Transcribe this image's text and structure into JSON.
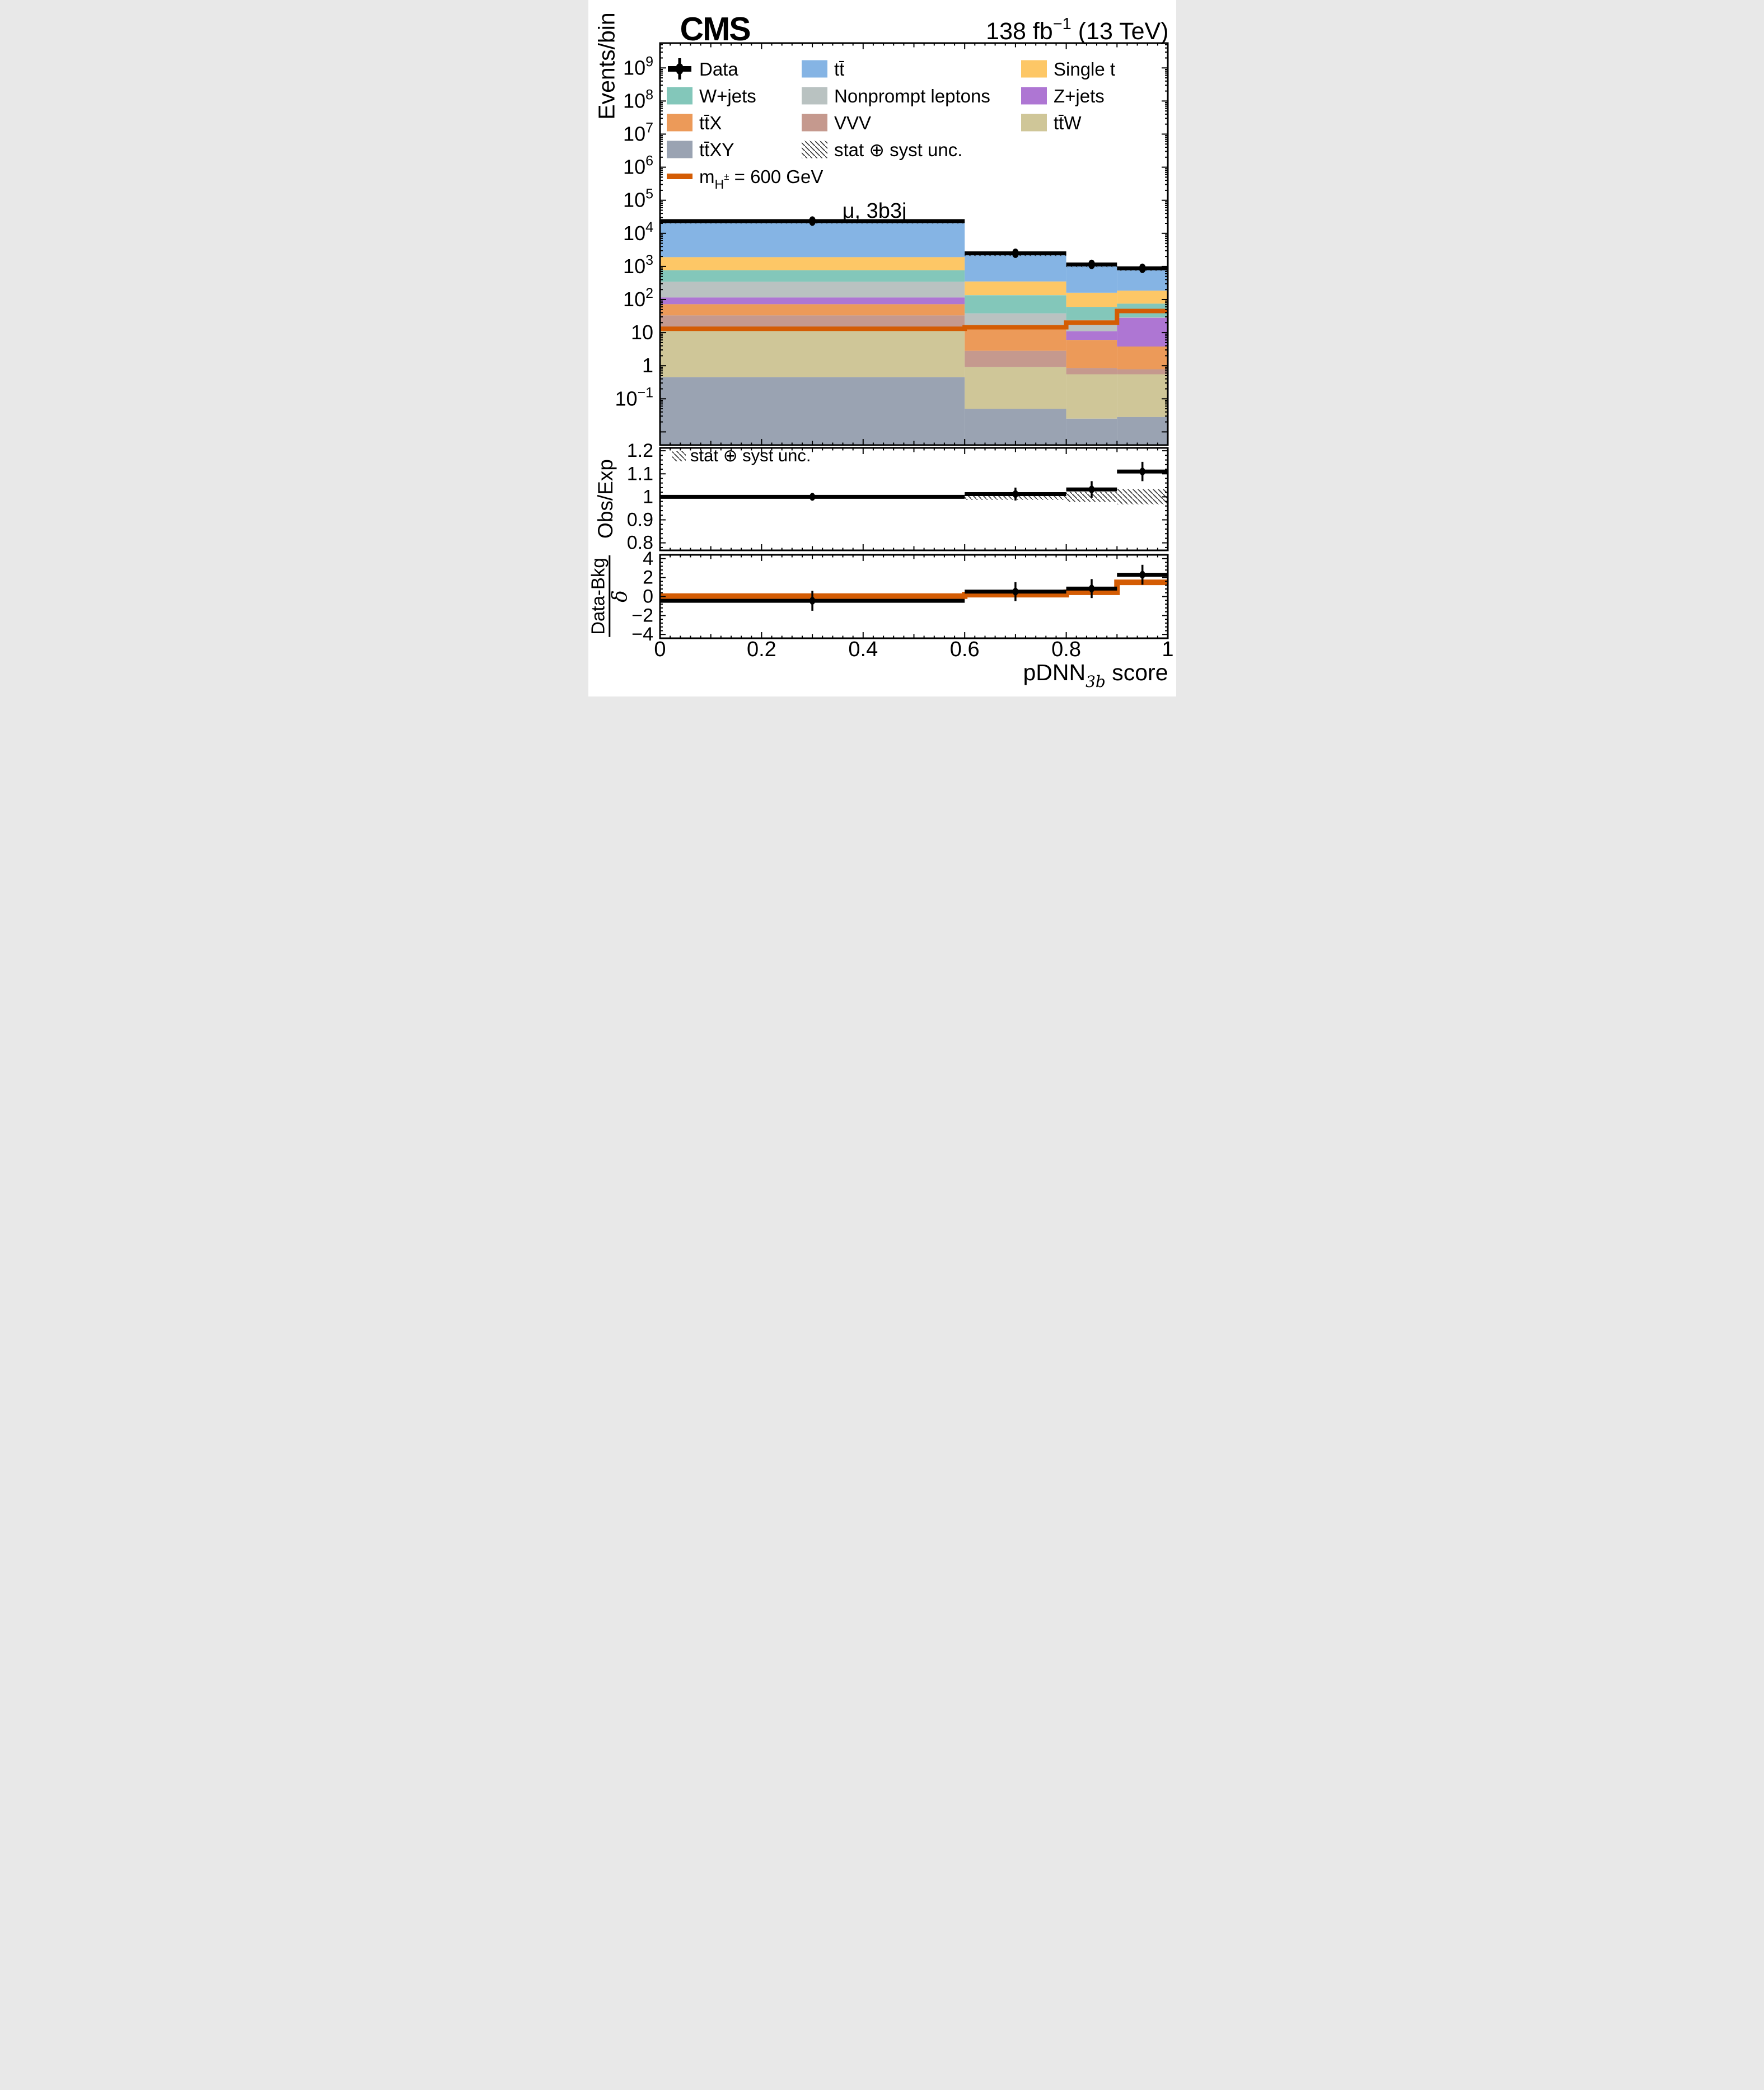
{
  "header": {
    "experiment": "CMS",
    "lumi_value": "138 fb",
    "lumi_exp": "−1",
    "lumi_energy": " (13 TeV)"
  },
  "channel_label": "μ, 3b3j",
  "unc_note": "stat ⊕ syst unc.",
  "axes": {
    "y_main_label": "Events/bin",
    "y_main_exponents": [
      9,
      8,
      7,
      6,
      5,
      4,
      3,
      2,
      1,
      0,
      -1
    ],
    "ratio_label": "Obs/Exp",
    "ratio_ticks": [
      1.2,
      1.1,
      1.0,
      0.9,
      0.8
    ],
    "ratio_tick_labels": [
      "1.2",
      "1.1",
      "1",
      "0.9",
      "0.8"
    ],
    "pull_numerator": "Data-Bkg",
    "pull_denominator": "δ",
    "pull_ticks": [
      4,
      2,
      0,
      -2,
      -4
    ],
    "pull_tick_labels": [
      "4",
      "2",
      "0",
      "−2",
      "−4"
    ],
    "x_ticks": [
      0,
      0.2,
      0.4,
      0.6,
      0.8,
      1
    ],
    "x_tick_labels": [
      "0",
      "0.2",
      "0.4",
      "0.6",
      "0.8",
      "1"
    ],
    "x_title_base": "pDNN",
    "x_title_sub": "3b",
    "x_title_rest": " score"
  },
  "legend": {
    "items": [
      {
        "id": "data",
        "type": "marker",
        "label": "Data",
        "color": "#000000",
        "col": 0,
        "row": 0
      },
      {
        "id": "ttbar",
        "type": "box",
        "label": "tt̄",
        "color": "#85b4e4",
        "col": 1,
        "row": 0
      },
      {
        "id": "single-t",
        "type": "box",
        "label": "Single t",
        "color": "#fdc766",
        "col": 2,
        "row": 0
      },
      {
        "id": "w-jets",
        "type": "box",
        "label": "W+jets",
        "color": "#83c7ba",
        "col": 0,
        "row": 1
      },
      {
        "id": "nonprompt",
        "type": "box",
        "label": "Nonprompt leptons",
        "color": "#b9c2c1",
        "col": 1,
        "row": 1
      },
      {
        "id": "z-jets",
        "type": "box",
        "label": "Z+jets",
        "color": "#ae76d3",
        "col": 2,
        "row": 1
      },
      {
        "id": "ttbar-x",
        "type": "box",
        "label": "tt̄X",
        "color": "#ec9a59",
        "col": 0,
        "row": 2
      },
      {
        "id": "vvv",
        "type": "box",
        "label": "VVV",
        "color": "#c5998e",
        "col": 1,
        "row": 2
      },
      {
        "id": "ttbar-w",
        "type": "box",
        "label": "tt̄W",
        "color": "#cfc698",
        "col": 2,
        "row": 2
      },
      {
        "id": "ttbar-xy",
        "type": "box",
        "label": "tt̄XY",
        "color": "#9aa3b2",
        "col": 0,
        "row": 3
      },
      {
        "id": "unc",
        "type": "hatch",
        "label": "stat ⊕ syst unc.",
        "color": "#3a3a3a",
        "col": 1,
        "row": 3
      },
      {
        "id": "signal",
        "type": "line",
        "label_base": "m",
        "label_sub": "H",
        "label_sup": "±",
        "label_rest": " = 600 GeV",
        "color": "#d45c04",
        "col": 0,
        "row": 4
      }
    ]
  },
  "chart_data": {
    "type": "bar",
    "stacked": true,
    "log_y": true,
    "title": "μ, 3b3j",
    "xlabel": "pDNN_3b score",
    "ylabel": "Events/bin",
    "xlim": [
      0,
      1
    ],
    "ylim_main": [
      0.004,
      5600000000
    ],
    "bin_edges": [
      0,
      0.6,
      0.8,
      0.9,
      1.0
    ],
    "series": [
      {
        "name": "ttbar",
        "label": "tt̄",
        "color": "#85b4e4",
        "cumulative_tops": [
          23000,
          2400,
          1100,
          860
        ]
      },
      {
        "name": "single-t",
        "label": "Single t",
        "color": "#fdc766",
        "cumulative_tops": [
          1900,
          350,
          160,
          185
        ]
      },
      {
        "name": "w-jets",
        "label": "W+jets",
        "color": "#83c7ba",
        "cumulative_tops": [
          770,
          135,
          60,
          75
        ]
      },
      {
        "name": "nonprompt",
        "label": "Nonprompt leptons",
        "color": "#b9c2c1",
        "cumulative_tops": [
          345,
          38,
          24,
          29
        ]
      },
      {
        "name": "z-jets",
        "label": "Z+jets",
        "color": "#ae76d3",
        "cumulative_tops": [
          115,
          17,
          11,
          28
        ]
      },
      {
        "name": "ttbar-x",
        "label": "tt̄X",
        "color": "#ec9a59",
        "cumulative_tops": [
          72,
          16.5,
          6,
          3.8
        ]
      },
      {
        "name": "vvv",
        "label": "VVV",
        "color": "#c5998e",
        "cumulative_tops": [
          33,
          2.8,
          0.85,
          0.78
        ]
      },
      {
        "name": "ttbar-w",
        "label": "tt̄W",
        "color": "#cfc698",
        "cumulative_tops": [
          15,
          0.9,
          0.55,
          0.55
        ]
      },
      {
        "name": "ttbar-xy",
        "label": "tt̄XY",
        "color": "#9aa3b2",
        "cumulative_tops": [
          0.45,
          0.05,
          0.025,
          0.028
        ]
      }
    ],
    "signal": {
      "label": "mH± = 600 GeV",
      "color": "#d45c04",
      "values": [
        13,
        14.5,
        20,
        45
      ]
    },
    "data_points": {
      "label": "Data",
      "values": [
        23500,
        2500,
        1150,
        880
      ],
      "yerr": [
        155,
        50,
        34,
        30
      ]
    },
    "uncertainty_fraction": 0.03,
    "ratio_panel": {
      "ylabel": "Obs/Exp",
      "ylim": [
        0.765,
        1.2125
      ],
      "points": [
        1.0,
        1.012,
        1.032,
        1.11
      ],
      "errs": [
        0.007,
        0.028,
        0.036,
        0.042
      ],
      "band_half_widths": [
        0.006,
        0.013,
        0.022,
        0.033
      ]
    },
    "pull_panel": {
      "ylabel": "(Data-Bkg)/δ",
      "ylim": [
        -4.4,
        4.4
      ],
      "points": [
        -0.45,
        0.52,
        0.84,
        2.3
      ],
      "errs": [
        1.05,
        1.0,
        1.0,
        1.05
      ],
      "signal_values": [
        0.05,
        0.2,
        0.45,
        1.5
      ]
    }
  }
}
